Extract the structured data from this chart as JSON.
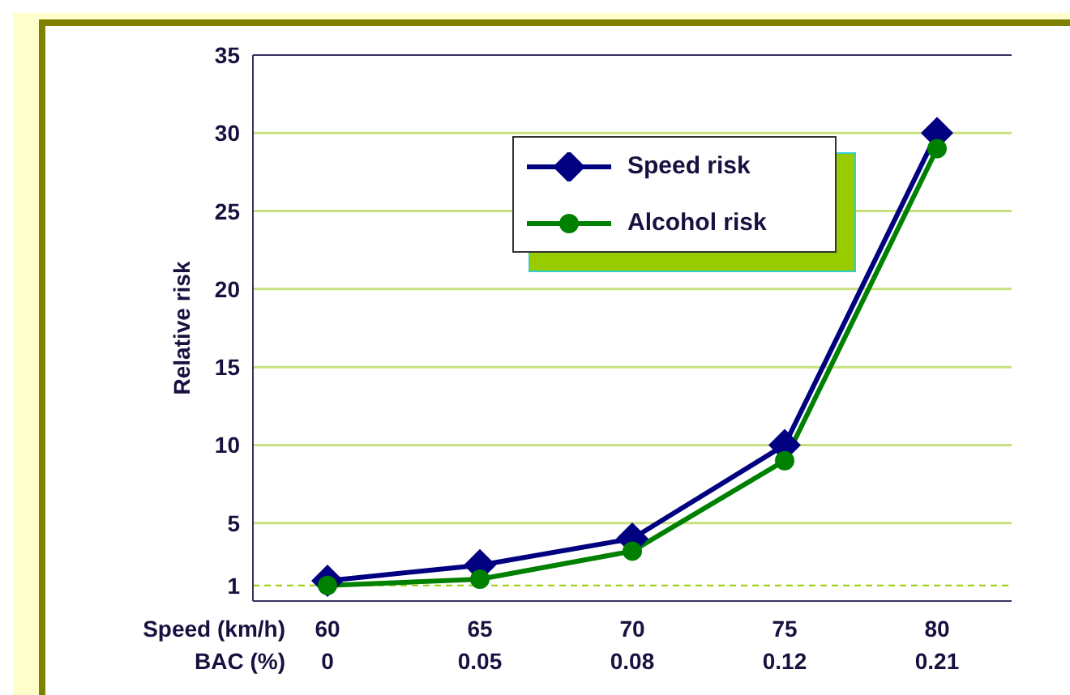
{
  "chart_data": {
    "type": "line",
    "xlabel": "Speed (km/h)\nBAC (%)",
    "ylabel": "Relative risk",
    "categories": [
      "60\n0",
      "65\n0.05",
      "70\n0.08",
      "75\n0.12",
      "80\n0.21"
    ],
    "series": [
      {
        "name": "Speed risk",
        "color": "#000080",
        "values": [
          1.3,
          2.3,
          4,
          10,
          30
        ],
        "marker": "diamond"
      },
      {
        "name": "Alcohol risk",
        "color": "#008000",
        "values": [
          1,
          1.4,
          3.2,
          9,
          29
        ],
        "marker": "circle"
      }
    ],
    "ylim": [
      0,
      35
    ],
    "yticks": [
      1,
      5,
      10,
      15,
      20,
      25,
      30,
      35
    ],
    "grid": "y",
    "legend": "top",
    "ref_lines": [
      {
        "axis": "y",
        "value": 1,
        "color": "#99cc00",
        "line_style": "dashed"
      }
    ],
    "line_style": "solid"
  }
}
